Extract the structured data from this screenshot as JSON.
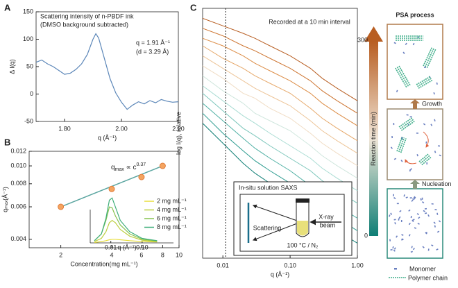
{
  "chart_data": [
    {
      "type": "line",
      "panel_label": "A",
      "xlabel": "q (Å⁻¹)",
      "ylabel": "Δ I(q)",
      "annotations": [
        "Scattering intensity of n-PBDF ink",
        "(DMSO background subtracted)",
        "q = 1.91 Å⁻¹",
        "(d = 3.29 Å)"
      ],
      "x": [
        1.7,
        1.72,
        1.74,
        1.76,
        1.78,
        1.8,
        1.82,
        1.84,
        1.86,
        1.88,
        1.9,
        1.91,
        1.92,
        1.94,
        1.96,
        1.98,
        2.0,
        2.02,
        2.04,
        2.06,
        2.08,
        2.1,
        2.12,
        2.14,
        2.16,
        2.18,
        2.2
      ],
      "values": [
        58,
        62,
        55,
        50,
        43,
        36,
        38,
        45,
        55,
        72,
        100,
        110,
        102,
        65,
        28,
        2,
        -15,
        -28,
        -20,
        -14,
        -18,
        -12,
        -16,
        -10,
        -13,
        -15,
        -14
      ],
      "color": "#5b86b8",
      "xlim": [
        1.7,
        2.2
      ],
      "ylim": [
        -50,
        150
      ],
      "xticks": [
        {
          "value": 1.8,
          "label": "1.80"
        },
        {
          "value": 2.0,
          "label": "2.00"
        },
        {
          "value": 2.2,
          "label": "2.20"
        }
      ],
      "yticks": [
        -50,
        0,
        50,
        100,
        150
      ]
    },
    {
      "type": "scatter",
      "panel_label": "B",
      "xlabel": "Concentration(mg mL⁻¹)",
      "ylabel": "qₘₐₓ(Å⁻¹)",
      "xscale": "log",
      "yscale": "log",
      "fit_label": [
        "q",
        "max",
        " ∝ c",
        "0.37"
      ],
      "fit_color": "#5aa5a0",
      "x": [
        2,
        4,
        6,
        8
      ],
      "values": [
        0.006,
        0.0075,
        0.0087,
        0.01
      ],
      "color": "#f4a460",
      "xlim": [
        1.3,
        10
      ],
      "ylim": [
        0.0036,
        0.012
      ],
      "xticks": [
        2,
        4,
        6,
        8,
        10
      ],
      "yticks": [
        0.004,
        0.006,
        0.008,
        {
          "value": 0.01,
          "label": "0.010"
        },
        0.012
      ],
      "inset": {
        "xlabel": "q (Å⁻¹)",
        "xscale": "log",
        "xlim": [
          0.0022,
          1
        ],
        "ylim": [
          0,
          1.05
        ],
        "xticks": [
          0.01,
          {
            "value": 0.1,
            "label": "0.10"
          }
        ],
        "x": [
          0.003,
          0.005,
          0.007,
          0.009,
          0.011,
          0.014,
          0.02,
          0.04,
          0.1,
          0.3
        ],
        "series": [
          {
            "name": "2 mg mL⁻¹",
            "color": "#e8de3c",
            "values": [
              0.01,
              0.03,
              0.05,
              0.07,
              0.08,
              0.08,
              0.07,
              0.05,
              0.03,
              0.02
            ]
          },
          {
            "name": "4 mg mL⁻¹",
            "color": "#bccf3f",
            "values": [
              0.03,
              0.1,
              0.25,
              0.45,
              0.5,
              0.45,
              0.3,
              0.15,
              0.06,
              0.03
            ]
          },
          {
            "name": "6 mg mL⁻¹",
            "color": "#86c24f",
            "values": [
              0.05,
              0.2,
              0.5,
              0.8,
              0.78,
              0.6,
              0.4,
              0.2,
              0.08,
              0.04
            ]
          },
          {
            "name": "8 mg mL⁻¹",
            "color": "#3fae7a",
            "values": [
              0.05,
              0.2,
              0.55,
              0.95,
              1.0,
              0.8,
              0.5,
              0.25,
              0.1,
              0.05
            ]
          }
        ]
      }
    },
    {
      "type": "line",
      "panel_label": "C",
      "xlabel": "q (Å⁻¹)",
      "ylabel": "log I(q), relative",
      "xscale": "log",
      "xlim": [
        0.005,
        1
      ],
      "ylim": [
        0,
        10
      ],
      "xticks": [
        0.01,
        {
          "value": 0.1,
          "label": "0.10"
        },
        {
          "value": 1,
          "label": "1.00"
        }
      ],
      "annotation": "Recorded at a 10 min interval",
      "vline": 0.011,
      "x": [
        0.005,
        0.01,
        0.02,
        0.03,
        0.05,
        0.1,
        0.2,
        0.3,
        0.5,
        1.0
      ],
      "series": [
        {
          "color": "#0e7e75",
          "values": [
            5.4,
            4.6,
            3.8,
            3.4,
            3.0,
            2.5,
            1.9,
            1.5,
            1.1,
            0.6
          ]
        },
        {
          "color": "#2a9a8e",
          "values": [
            5.8,
            5.0,
            4.3,
            3.9,
            3.5,
            3.0,
            2.4,
            2.0,
            1.6,
            1.1
          ]
        },
        {
          "color": "#4fb0a4",
          "values": [
            6.2,
            5.5,
            4.8,
            4.4,
            4.0,
            3.5,
            2.9,
            2.5,
            2.1,
            1.6
          ]
        },
        {
          "color": "#7cc6bb",
          "values": [
            6.6,
            5.9,
            5.2,
            4.9,
            4.5,
            4.0,
            3.5,
            3.1,
            2.7,
            2.2
          ]
        },
        {
          "color": "#a9dcd3",
          "values": [
            6.9,
            6.3,
            5.7,
            5.4,
            5.0,
            4.5,
            4.0,
            3.6,
            3.2,
            2.7
          ]
        },
        {
          "color": "#cfe6dd",
          "values": [
            7.3,
            6.7,
            6.2,
            5.8,
            5.5,
            5.1,
            4.5,
            4.1,
            3.7,
            3.2
          ]
        },
        {
          "color": "#f0dcc4",
          "values": [
            7.7,
            7.2,
            6.6,
            6.4,
            6.0,
            5.6,
            5.0,
            4.6,
            4.2,
            3.7
          ]
        },
        {
          "color": "#edc497",
          "values": [
            8.1,
            7.6,
            7.1,
            6.8,
            6.5,
            6.1,
            5.5,
            5.1,
            4.7,
            4.2
          ]
        },
        {
          "color": "#e6a86a",
          "values": [
            8.5,
            8.0,
            7.6,
            7.3,
            7.0,
            6.6,
            6.0,
            5.6,
            5.2,
            4.7
          ]
        },
        {
          "color": "#dc8c45",
          "values": [
            8.8,
            8.5,
            8.1,
            7.8,
            7.5,
            7.1,
            6.6,
            6.2,
            5.8,
            5.3
          ]
        },
        {
          "color": "#cd7430",
          "values": [
            9.2,
            8.9,
            8.5,
            8.3,
            8.0,
            7.6,
            7.1,
            6.7,
            6.3,
            5.8
          ]
        },
        {
          "color": "#b85e22",
          "values": [
            9.6,
            9.3,
            9.0,
            8.8,
            8.5,
            8.1,
            7.6,
            7.2,
            6.8,
            6.3
          ]
        }
      ],
      "colorbar": {
        "label": "Reaction time (min)",
        "lim": [
          0,
          300
        ],
        "ticks": [
          0,
          300
        ],
        "colors": [
          "#0e7e75",
          "#f0e6d8",
          "#b85e22"
        ]
      },
      "inset": {
        "title": "In-situ solution SAXS",
        "labels": [
          "Scattering",
          "X-ray",
          "beam",
          "100 °C / N₂"
        ]
      }
    }
  ],
  "diagram": {
    "title": "PSA process",
    "steps": [
      "Growth",
      "Nucleation"
    ],
    "legend": [
      "Monomer",
      "Polymer chain"
    ]
  }
}
